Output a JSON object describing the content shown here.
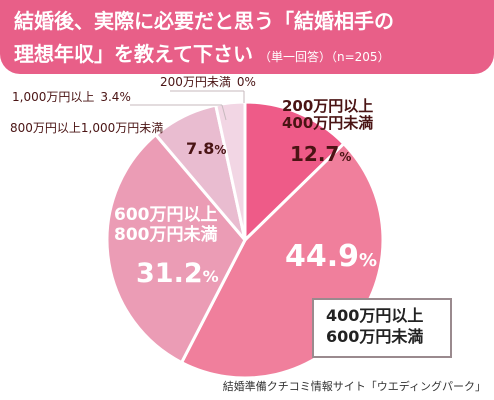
{
  "title": {
    "line1": "結婚後、実際に必要だと思う「結婚相手の",
    "line2": "理想年収」を教えて下さい",
    "note": "（単一回答）（n=205）"
  },
  "colors": {
    "header": "#e85f88",
    "slice_200_400": "#ee5b88",
    "slice_400_600": "#f07f9c",
    "slice_600_800": "#eb9cb5",
    "slice_800_1000": "#e9bcd0",
    "slice_1000plus": "#f2d6e4",
    "slice_lt200": "#f6e6ee"
  },
  "chart_data": {
    "type": "pie",
    "title": "結婚後、実際に必要だと思う「結婚相手の理想年収」を教えて下さい",
    "n": 205,
    "series": [
      {
        "name": "",
        "values": [
          {
            "label": "200万円以上 400万円未満",
            "value": 12.7
          },
          {
            "label": "400万円以上 600万円未満",
            "value": 44.9
          },
          {
            "label": "600万円以上 800万円未満",
            "value": 31.2
          },
          {
            "label": "800万円以上1,000万円未満",
            "value": 7.8
          },
          {
            "label": "1,000万円以上",
            "value": 3.4
          },
          {
            "label": "200万円未満",
            "value": 0
          }
        ]
      }
    ]
  },
  "labels": {
    "s1_line1": "200万円以上",
    "s1_line2": "400万円未満",
    "s1_pct": "12.7",
    "s2_pct": "44.9",
    "s2_line1": "400万円以上",
    "s2_line2": "600万円未満",
    "s3_line1": "600万円以上",
    "s3_line2": "800万円未満",
    "s3_pct": "31.2",
    "s4_label": "800万円以上1,000万円未満",
    "s4_pct": "7.8",
    "s5_label": "1,000万円以上",
    "s5_pct": "3.4",
    "s6_label": "200万円未満",
    "s6_pct": "0",
    "pct_sign": "%"
  },
  "source": "結婚準備クチコミ情報サイト「ウエディングパーク」"
}
